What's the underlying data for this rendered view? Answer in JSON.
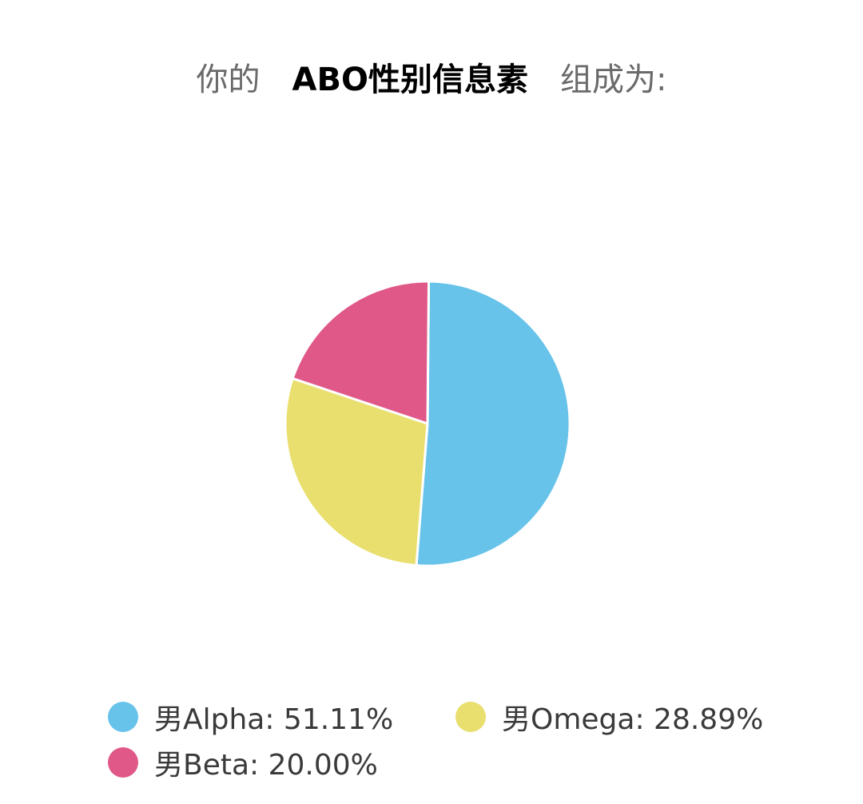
{
  "title": {
    "prefix": "你的",
    "main": "ABO性别信息素",
    "suffix": "组成为:"
  },
  "chart_data": {
    "type": "pie",
    "categories": [
      "男Alpha",
      "男Omega",
      "男Beta"
    ],
    "values": [
      51.11,
      28.89,
      20.0
    ],
    "colors": [
      "#67c3ea",
      "#e9df6e",
      "#e05888"
    ],
    "legend_labels": [
      "男Alpha: 51.11%",
      "男Omega: 28.89%",
      "男Beta: 20.00%"
    ],
    "legend_position": "bottom"
  }
}
